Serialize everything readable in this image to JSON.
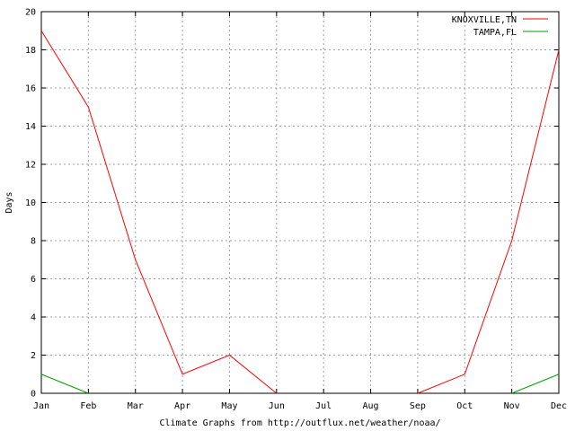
{
  "chart_data": {
    "type": "line",
    "title": "",
    "xlabel": "Climate Graphs from http://outflux.net/weather/noaa/",
    "ylabel": "Days",
    "categories": [
      "Jan",
      "Feb",
      "Mar",
      "Apr",
      "May",
      "Jun",
      "Jul",
      "Aug",
      "Sep",
      "Oct",
      "Nov",
      "Dec"
    ],
    "ylim": [
      0,
      20
    ],
    "yticks": [
      0,
      2,
      4,
      6,
      8,
      10,
      12,
      14,
      16,
      18,
      20
    ],
    "grid": true,
    "legend_position": "top-right",
    "series": [
      {
        "name": "KNOXVILLE,TN",
        "color": "#ff0000",
        "values": [
          19,
          15,
          7,
          1,
          2,
          0,
          null,
          null,
          0,
          1,
          8,
          18
        ]
      },
      {
        "name": "TAMPA,FL",
        "color": "#00a000",
        "values": [
          1,
          0,
          null,
          null,
          null,
          null,
          null,
          null,
          null,
          null,
          0,
          1
        ]
      }
    ]
  }
}
